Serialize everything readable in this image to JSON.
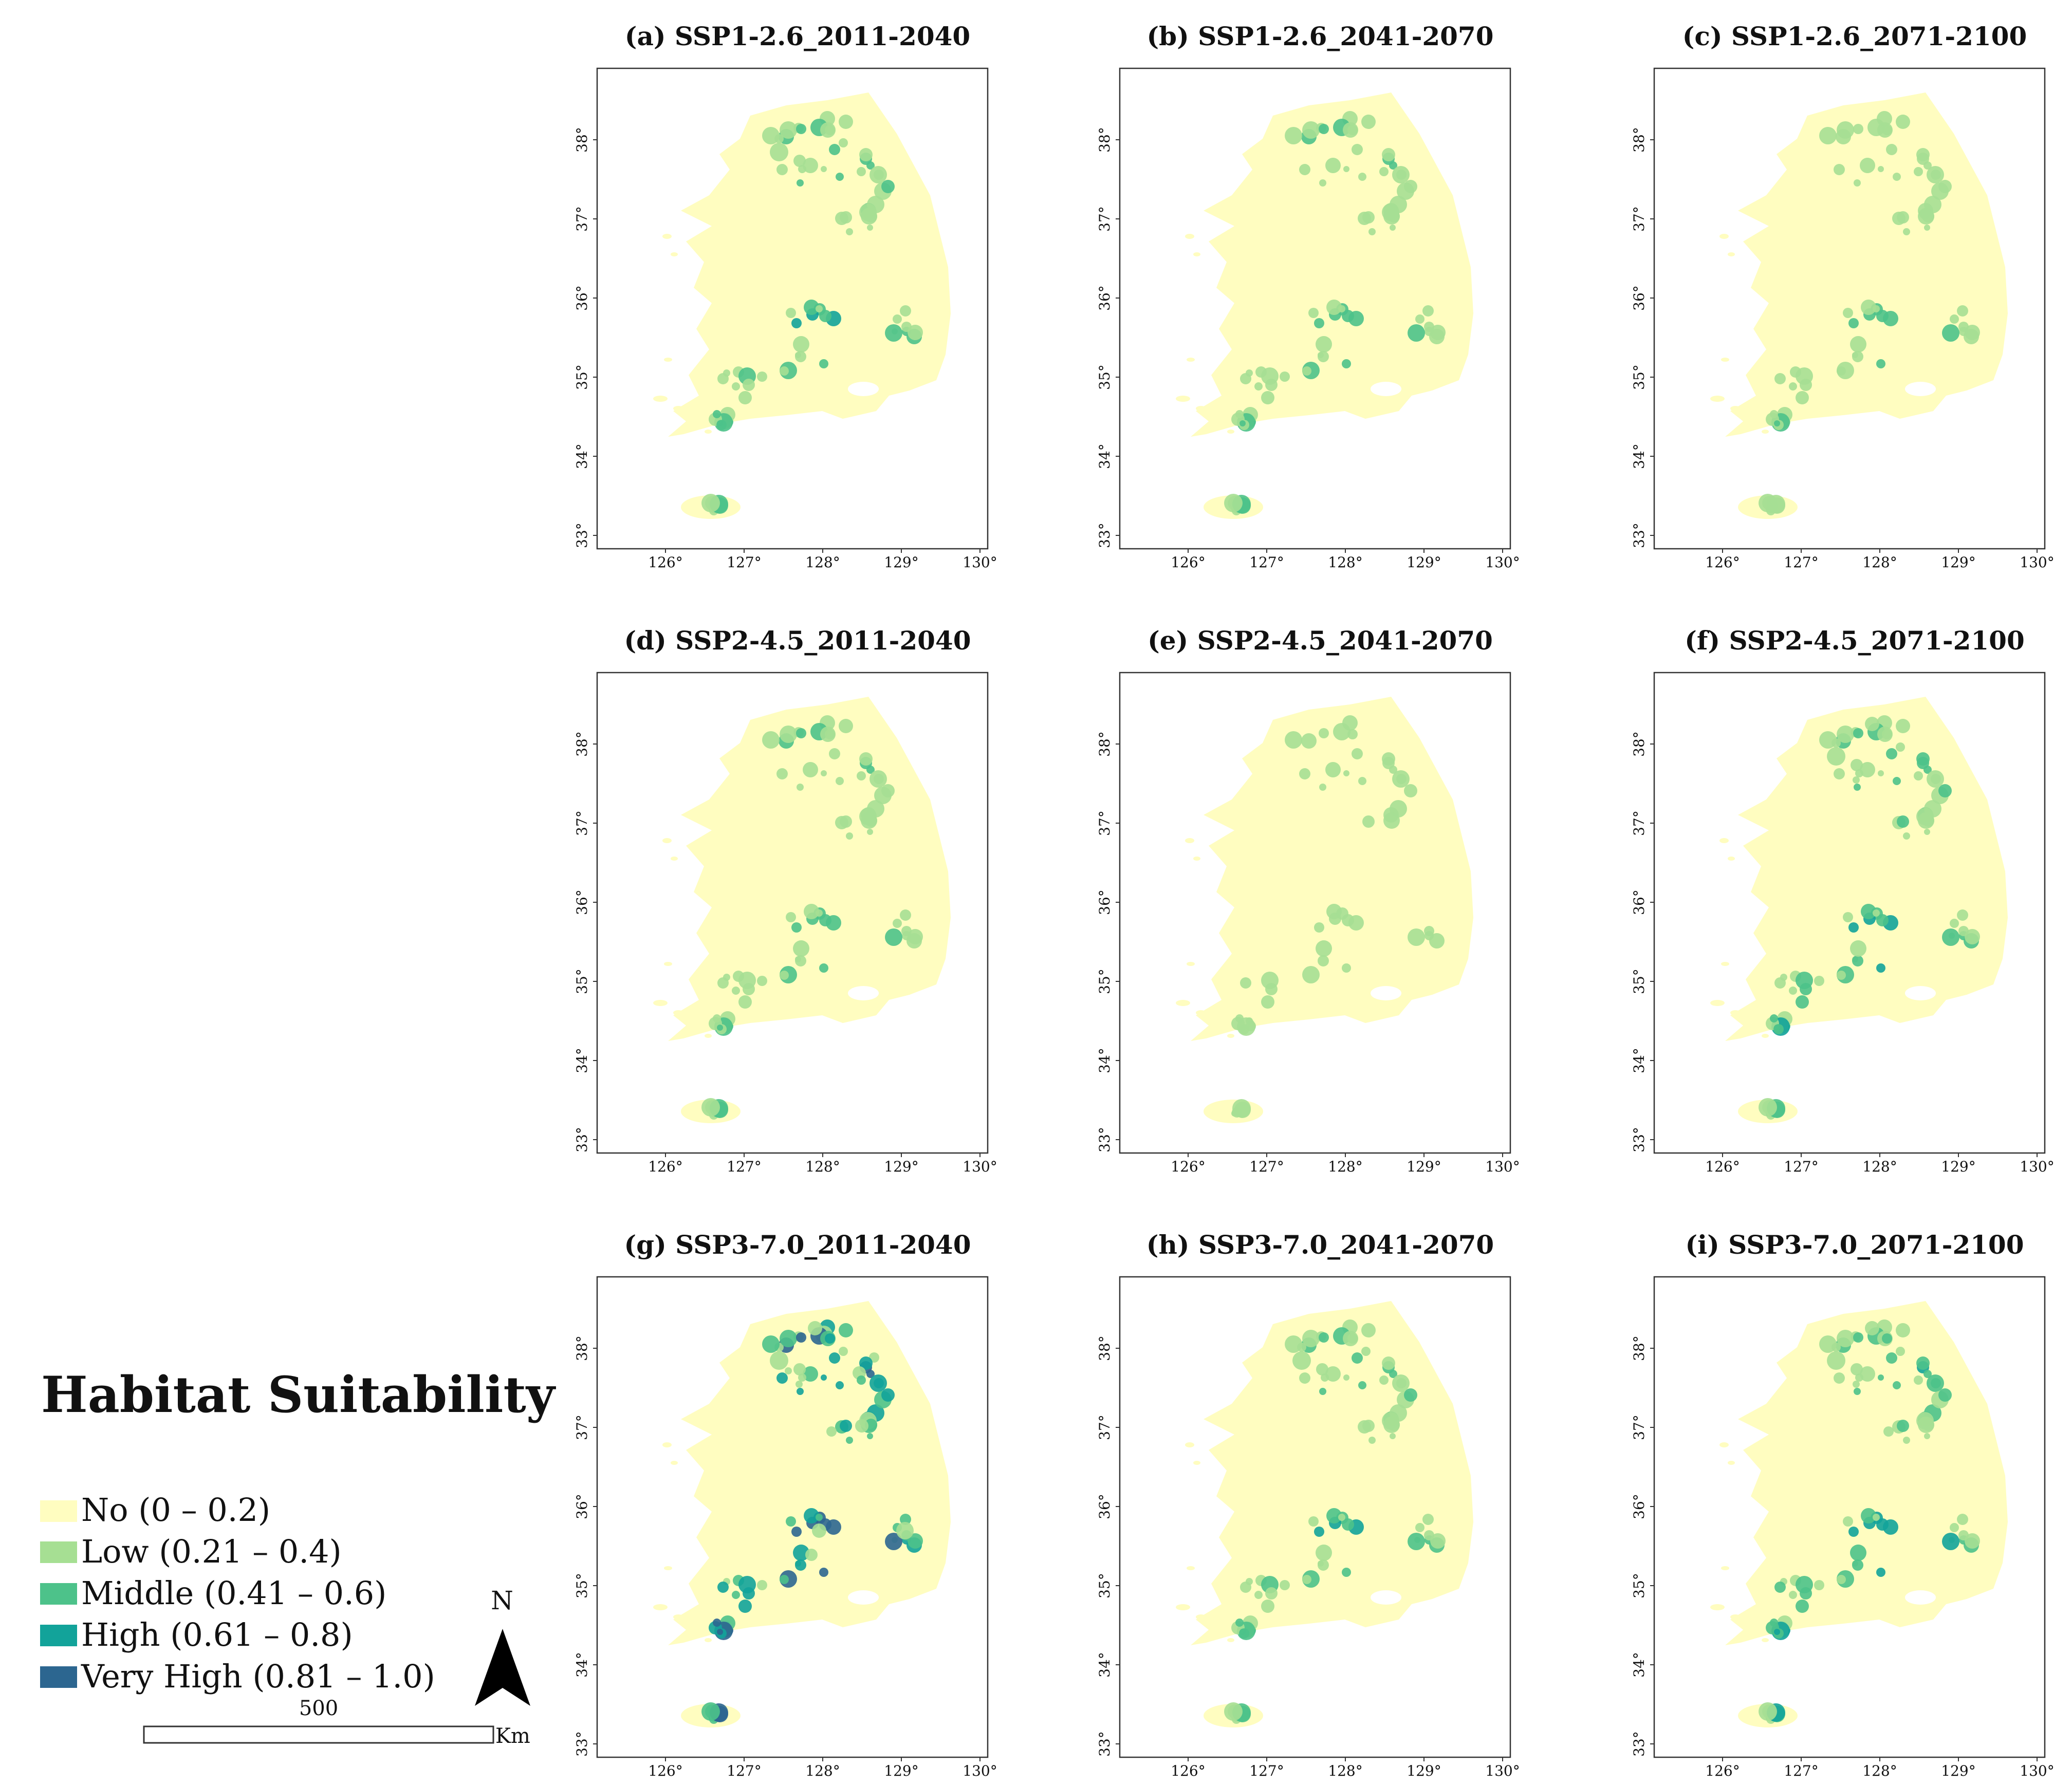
{
  "legend": {
    "title": "Habitat Suitability",
    "classes": [
      {
        "label": "No (0 – 0.2)",
        "color": "#FFFDC0"
      },
      {
        "label": "Low (0.21 – 0.4)",
        "color": "#A6DF93"
      },
      {
        "label": "Middle (0.41 – 0.6)",
        "color": "#4DC28A"
      },
      {
        "label": "High (0.61 – 0.8)",
        "color": "#12A39A"
      },
      {
        "label": "Very High (0.81 – 1.0)",
        "color": "#2C6690"
      }
    ]
  },
  "scale_bar": {
    "value": "500",
    "unit": "Km"
  },
  "north_arrow": {
    "label": "N"
  },
  "axes": {
    "lon_ticks": [
      "126°",
      "127°",
      "128°",
      "129°",
      "130°"
    ],
    "lat_ticks": [
      "33°",
      "34°",
      "35°",
      "36°",
      "37°",
      "38°"
    ]
  },
  "panels": [
    {
      "title": "(a) SSP1-2.6_2011-2040",
      "intensity": 0.45
    },
    {
      "title": "(b) SSP1-2.6_2041-2070",
      "intensity": 0.35
    },
    {
      "title": "(c) SSP1-2.6_2071-2100",
      "intensity": 0.3
    },
    {
      "title": "(d) SSP2-4.5_2011-2040",
      "intensity": 0.35
    },
    {
      "title": "(e) SSP2-4.5_2041-2070",
      "intensity": 0.18
    },
    {
      "title": "(f) SSP2-4.5_2071-2100",
      "intensity": 0.5
    },
    {
      "title": "(g) SSP3-7.0_2011-2040",
      "intensity": 1.0
    },
    {
      "title": "(h) SSP3-7.0_2041-2070",
      "intensity": 0.45
    },
    {
      "title": "(i) SSP3-7.0_2071-2100",
      "intensity": 0.55
    }
  ]
}
